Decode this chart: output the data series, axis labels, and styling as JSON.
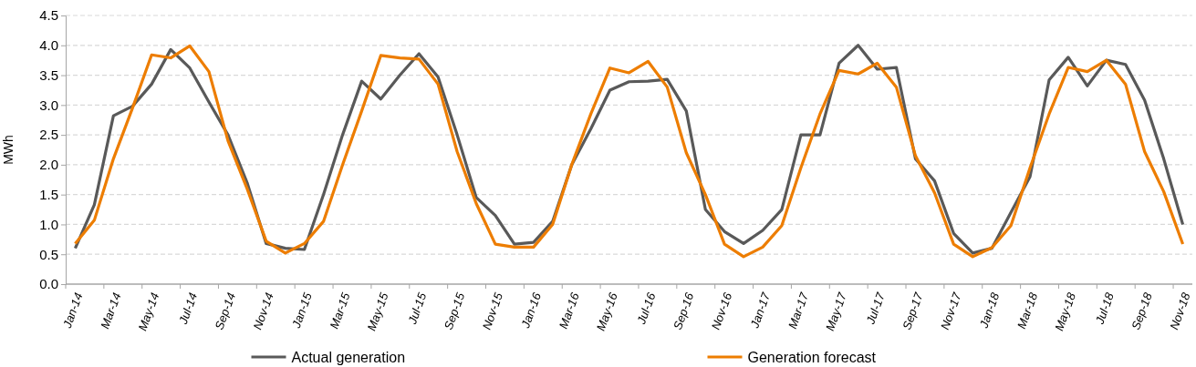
{
  "chart_data": {
    "type": "line",
    "ylabel": "MWh",
    "categories": [
      "Jan-14",
      null,
      "Mar-14",
      null,
      "May-14",
      null,
      "Jul-14",
      null,
      "Sep-14",
      null,
      "Nov-14",
      null,
      "Jan-15",
      null,
      "Mar-15",
      null,
      "May-15",
      null,
      "Jul-15",
      null,
      "Sep-15",
      null,
      "Nov-15",
      null,
      "Jan-16",
      null,
      "Mar-16",
      null,
      "May-16",
      null,
      "Jul-16",
      null,
      "Sep-16",
      null,
      "Nov-16",
      null,
      "Jan-17",
      null,
      "Mar-17",
      null,
      "May-17",
      null,
      "Jul-17",
      null,
      "Sep-17",
      null,
      "Nov-17",
      null,
      "Jan-18",
      null,
      "Mar-18",
      null,
      "May-18",
      null,
      "Jul-18",
      null,
      "Sep-18",
      null,
      "Nov-18"
    ],
    "series": [
      {
        "name": "Actual generation",
        "color": "#595959",
        "values": [
          0.6,
          1.33,
          2.82,
          2.98,
          3.35,
          3.93,
          3.62,
          3.05,
          2.5,
          1.7,
          0.68,
          0.6,
          0.58,
          1.5,
          2.5,
          3.4,
          3.1,
          3.5,
          3.86,
          3.47,
          2.5,
          1.45,
          1.15,
          0.67,
          0.7,
          1.05,
          2.0,
          2.6,
          3.25,
          3.39,
          3.4,
          3.43,
          2.9,
          1.25,
          0.88,
          0.68,
          0.9,
          1.25,
          2.5,
          2.5,
          3.7,
          4.0,
          3.6,
          3.63,
          2.1,
          1.73,
          0.85,
          0.52,
          0.6,
          1.2,
          1.8,
          3.42,
          3.8,
          3.32,
          3.75,
          3.68,
          3.08,
          2.1,
          1.0
        ]
      },
      {
        "name": "Generation forecast",
        "color": "#ed7d00",
        "values": [
          0.68,
          1.07,
          2.1,
          2.95,
          3.84,
          3.79,
          3.99,
          3.56,
          2.4,
          1.6,
          0.72,
          0.52,
          0.68,
          1.05,
          2.0,
          2.9,
          3.83,
          3.79,
          3.77,
          3.35,
          2.22,
          1.35,
          0.67,
          0.62,
          0.62,
          1.0,
          2.0,
          2.85,
          3.62,
          3.54,
          3.73,
          3.3,
          2.2,
          1.5,
          0.67,
          0.46,
          0.62,
          0.98,
          1.95,
          2.85,
          3.58,
          3.52,
          3.7,
          3.3,
          2.15,
          1.53,
          0.67,
          0.46,
          0.61,
          0.98,
          1.95,
          2.85,
          3.63,
          3.56,
          3.75,
          3.35,
          2.22,
          1.55,
          0.67
        ]
      }
    ],
    "ylim": [
      0,
      4.5
    ],
    "yticks": [
      {
        "value": 0,
        "label": "0.0"
      },
      {
        "value": 0.5,
        "label": "0.5"
      },
      {
        "value": 1,
        "label": "1.0"
      },
      {
        "value": 1.5,
        "label": "1.5"
      },
      {
        "value": 2,
        "label": "2.0"
      },
      {
        "value": 2.5,
        "label": "2.5"
      },
      {
        "value": 3,
        "label": "3.0"
      },
      {
        "value": 3.5,
        "label": "3.5"
      },
      {
        "value": 4,
        "label": "4.0"
      },
      {
        "value": 4.5,
        "label": "4.5"
      }
    ],
    "grid": "y",
    "legend": "bottom",
    "marker": "none",
    "line_style": "solid"
  }
}
